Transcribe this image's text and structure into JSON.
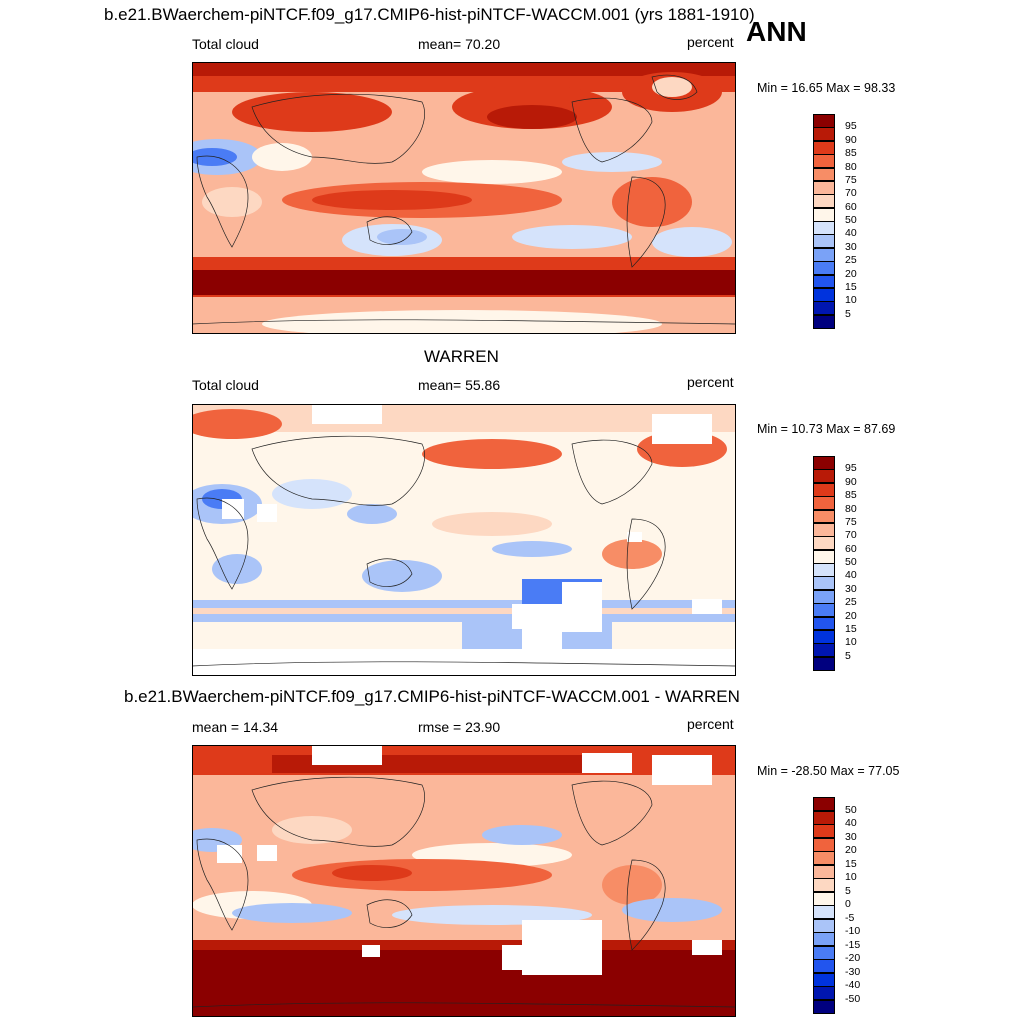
{
  "header": {
    "ann_label": "ANN"
  },
  "panels": [
    {
      "title": "b.e21.BWaerchem-piNTCF.f09_g17.CMIP6-hist-piNTCF-WACCM.001 (yrs 1881-1910)",
      "left_label": "Total cloud",
      "center_label": "mean=  70.20",
      "right_label": "percent",
      "minmax": "Min =  16.65 Max =  98.33",
      "colorbar_labels": [
        "95",
        "90",
        "85",
        "80",
        "75",
        "70",
        "60",
        "50",
        "40",
        "30",
        "25",
        "20",
        "15",
        "10",
        "5"
      ]
    },
    {
      "title": "WARREN",
      "left_label": "Total cloud",
      "center_label": "mean=  55.86",
      "right_label": "percent",
      "minmax": "Min =  10.73 Max =  87.69",
      "colorbar_labels": [
        "95",
        "90",
        "85",
        "80",
        "75",
        "70",
        "60",
        "50",
        "40",
        "30",
        "25",
        "20",
        "15",
        "10",
        "5"
      ]
    },
    {
      "title": "b.e21.BWaerchem-piNTCF.f09_g17.CMIP6-hist-piNTCF-WACCM.001 - WARREN",
      "left_label": "mean =  14.34",
      "center_label": "rmse =  23.90",
      "right_label": "percent",
      "minmax": "Min = -28.50 Max =  77.05",
      "colorbar_labels": [
        "50",
        "40",
        "30",
        "20",
        "15",
        "10",
        "5",
        "0",
        "-5",
        "-10",
        "-15",
        "-20",
        "-30",
        "-40",
        "-50"
      ]
    }
  ],
  "colors": {
    "scale": [
      "#00007f",
      "#0016b0",
      "#0033dd",
      "#2255ee",
      "#4a7cf5",
      "#7aa2f7",
      "#aac4f8",
      "#d5e3fb",
      "#fff6ea",
      "#fdd8c2",
      "#fbb79a",
      "#f78d66",
      "#f0633d",
      "#de3a1a",
      "#b81a07",
      "#8b0000"
    ]
  },
  "chart_data": [
    {
      "type": "heatmap",
      "title": "b.e21.BWaerchem-piNTCF.f09_g17.CMIP6-hist-piNTCF-WACCM.001 (yrs 1881-1910)",
      "variable": "Total cloud",
      "units": "percent",
      "mean": 70.2,
      "min": 16.65,
      "max": 98.33,
      "levels": [
        5,
        10,
        15,
        20,
        25,
        30,
        40,
        50,
        60,
        70,
        75,
        80,
        85,
        90,
        95
      ]
    },
    {
      "type": "heatmap",
      "title": "WARREN",
      "variable": "Total cloud",
      "units": "percent",
      "mean": 55.86,
      "min": 10.73,
      "max": 87.69,
      "levels": [
        5,
        10,
        15,
        20,
        25,
        30,
        40,
        50,
        60,
        70,
        75,
        80,
        85,
        90,
        95
      ]
    },
    {
      "type": "heatmap",
      "title": "b.e21.BWaerchem-piNTCF.f09_g17.CMIP6-hist-piNTCF-WACCM.001 - WARREN",
      "units": "percent",
      "mean": 14.34,
      "rmse": 23.9,
      "min": -28.5,
      "max": 77.05,
      "levels": [
        -50,
        -40,
        -30,
        -20,
        -15,
        -10,
        -5,
        0,
        5,
        10,
        15,
        20,
        30,
        40,
        50
      ]
    }
  ]
}
